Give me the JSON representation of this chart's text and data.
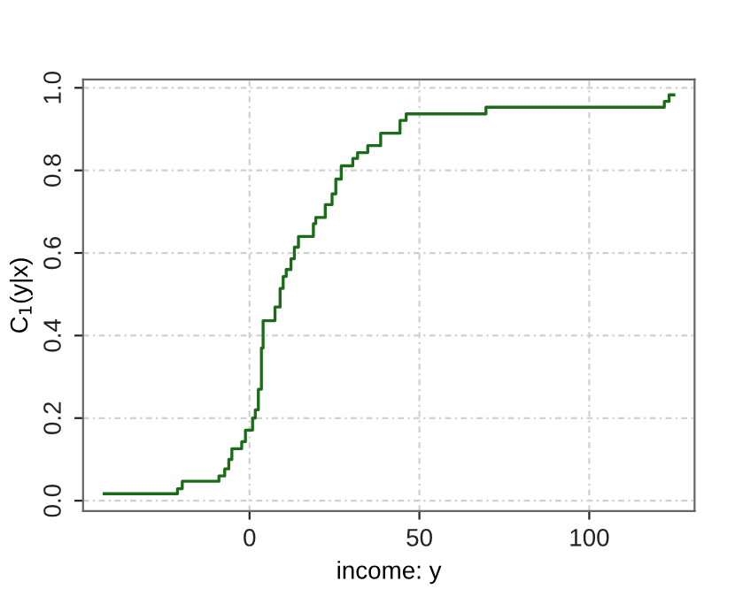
{
  "chart_data": {
    "type": "step",
    "xlabel": "income: y",
    "ylabel": "C$_{1}$(y|x)",
    "x": [
      -42.8,
      -21.2,
      -19.8,
      -9.0,
      -7.3,
      -6.1,
      -5.2,
      -2.3,
      -1.2,
      0.9,
      1.7,
      2.6,
      3.5,
      4.0,
      7.5,
      9.0,
      9.9,
      10.8,
      12.2,
      13.2,
      14.4,
      18.8,
      19.5,
      22.3,
      24.3,
      25.4,
      27.0,
      30.4,
      31.8,
      34.8,
      38.6,
      44.3,
      46.1,
      69.6,
      122.1,
      123.5,
      124.9
    ],
    "series": [
      {
        "color": "#1a6b1a",
        "values": [
          0.017,
          0.029,
          0.047,
          0.06,
          0.077,
          0.1,
          0.126,
          0.143,
          0.171,
          0.2,
          0.22,
          0.27,
          0.37,
          0.436,
          0.469,
          0.514,
          0.543,
          0.56,
          0.586,
          0.614,
          0.64,
          0.671,
          0.686,
          0.717,
          0.743,
          0.779,
          0.811,
          0.829,
          0.843,
          0.86,
          0.89,
          0.921,
          0.937,
          0.953,
          0.967,
          0.983,
          0.983
        ]
      }
    ],
    "xlim": [
      -49,
      131
    ],
    "ylim": [
      -0.025,
      1.02
    ],
    "xticks": [
      0,
      50,
      100
    ],
    "yticks": [
      {
        "value": 0,
        "label": "0.0"
      },
      {
        "value": 0.2,
        "label": "0.2"
      },
      {
        "value": 0.4,
        "label": "0.4"
      },
      {
        "value": 0.6,
        "label": "0.6"
      },
      {
        "value": 0.8,
        "label": "0.8"
      },
      {
        "value": 1.0,
        "label": "1.0"
      }
    ],
    "grid": true,
    "line_style": "solid"
  }
}
